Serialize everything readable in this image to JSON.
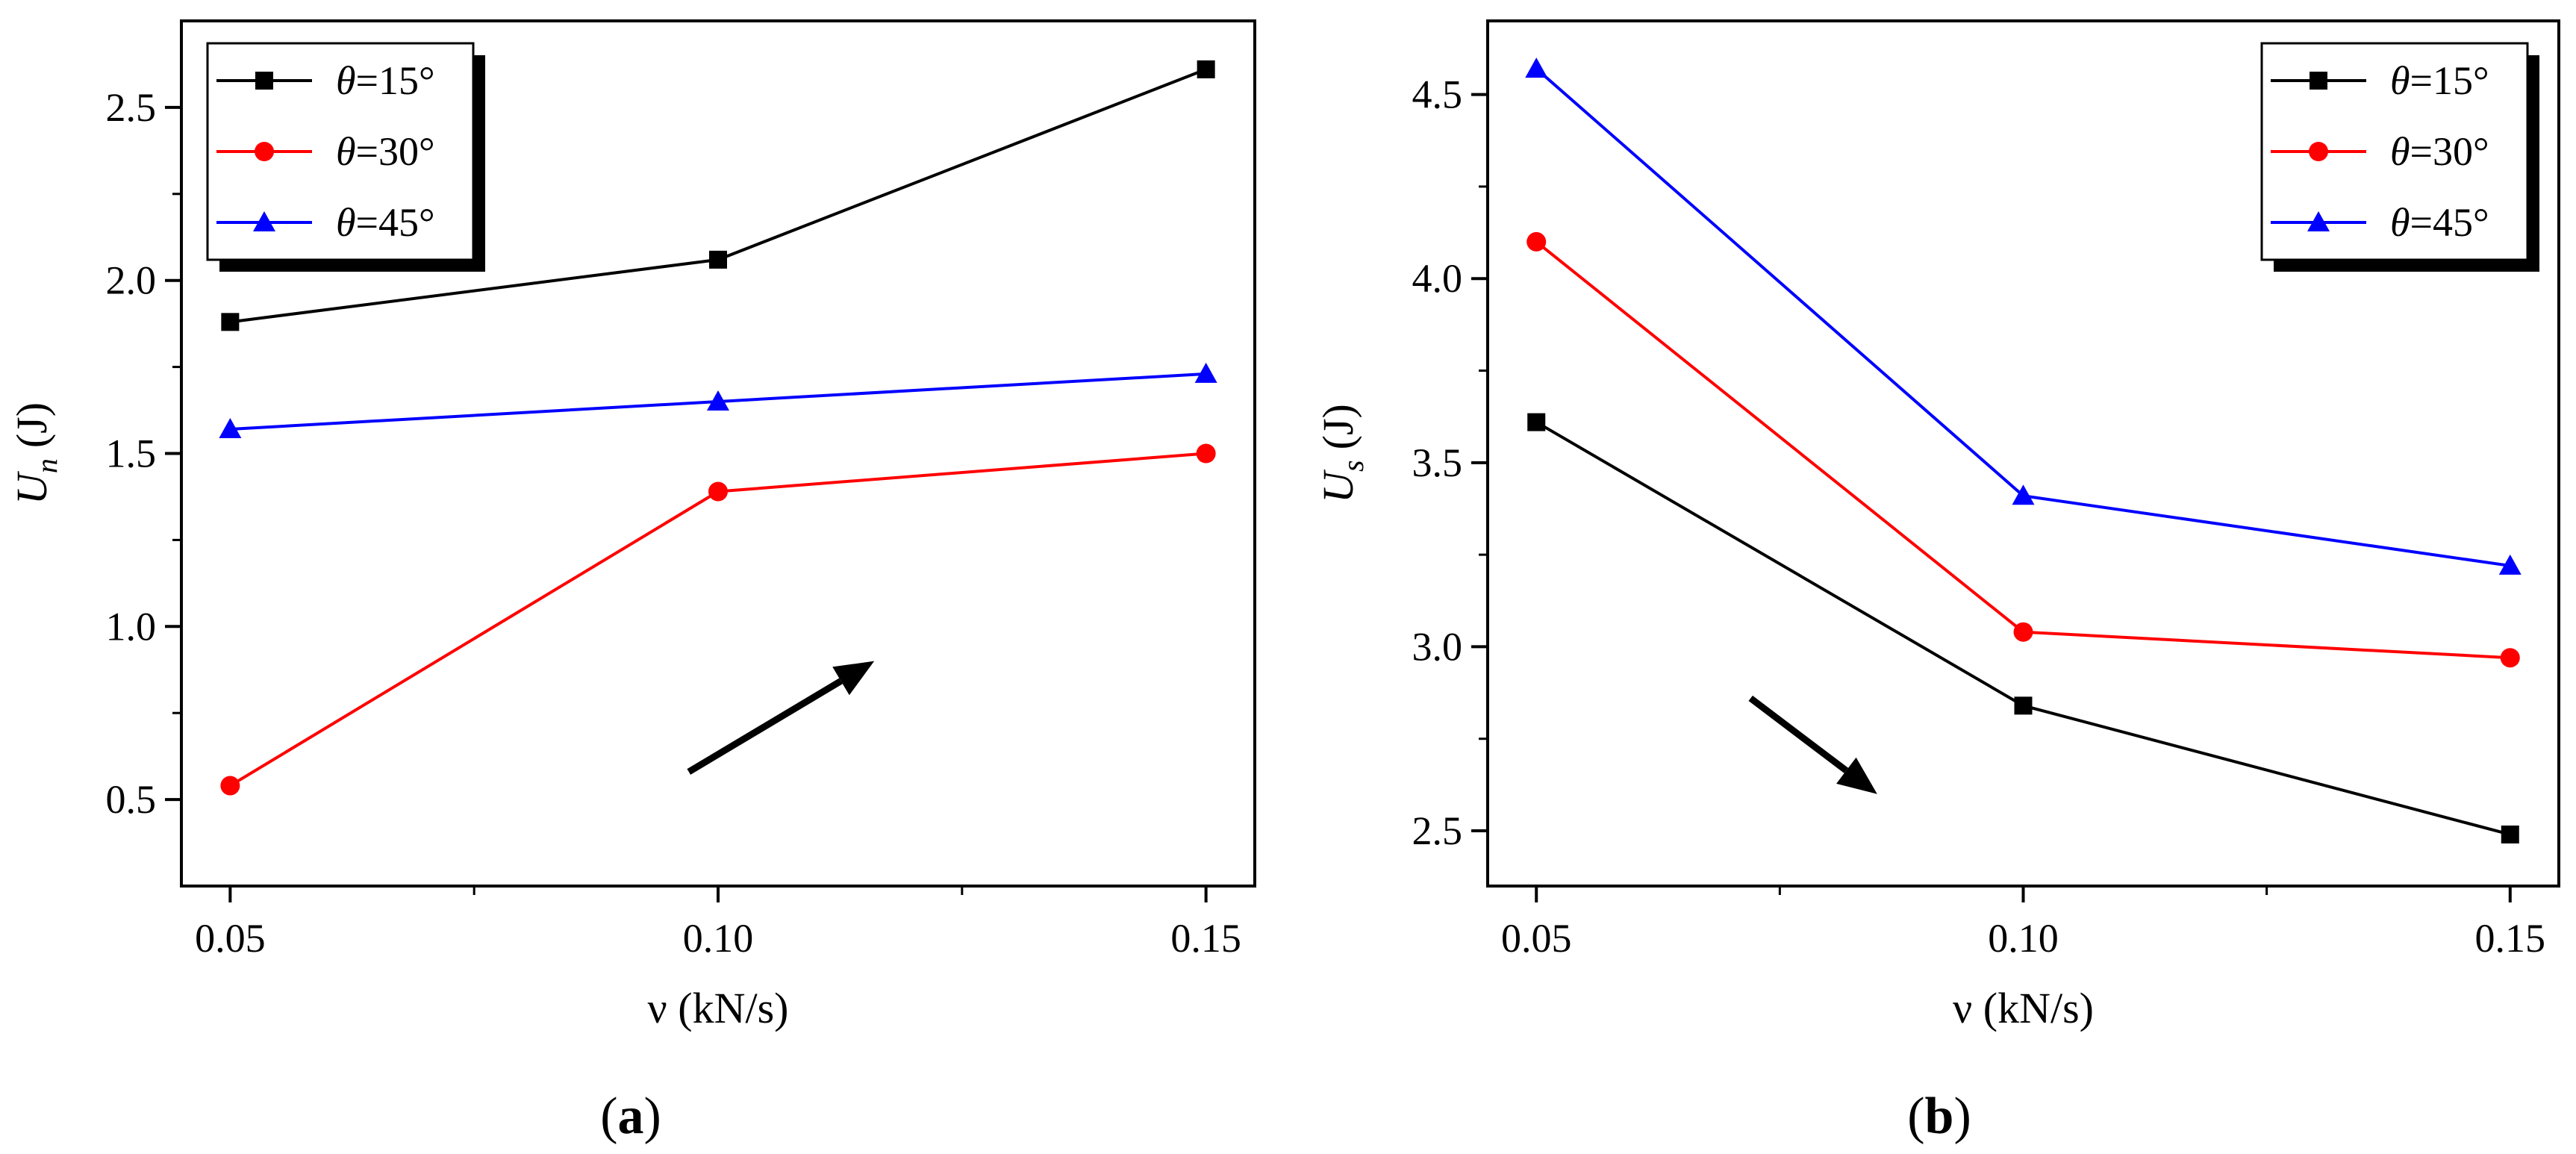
{
  "chart_data": [
    {
      "type": "line",
      "panel_label": "a",
      "ylabel_main": "U",
      "ylabel_sub": "n",
      "ylabel_unit": "(J)",
      "xlabel": "ν (kN/s)",
      "x": [
        0.05,
        0.1,
        0.15
      ],
      "xtick_labels": [
        "0.05",
        "0.10",
        "0.15"
      ],
      "xlim": [
        0.045,
        0.155
      ],
      "ylim": [
        0.25,
        2.75
      ],
      "yticks": [
        0.5,
        1.0,
        1.5,
        2.0,
        2.5
      ],
      "ytick_labels": [
        "0.5",
        "1.0",
        "1.5",
        "2.0",
        "2.5"
      ],
      "series": [
        {
          "name": "θ=15°",
          "label_theta": "θ",
          "label_rest": "=15°",
          "color": "#000000",
          "marker": "square",
          "values": [
            1.88,
            2.06,
            2.61
          ]
        },
        {
          "name": "θ=30°",
          "label_theta": "θ",
          "label_rest": "=30°",
          "color": "#ff0000",
          "marker": "circle",
          "values": [
            0.54,
            1.39,
            1.5
          ]
        },
        {
          "name": "θ=45°",
          "label_theta": "θ",
          "label_rest": "=45°",
          "color": "#0000ff",
          "marker": "triangle",
          "values": [
            1.57,
            1.65,
            1.73
          ]
        }
      ],
      "legend_position": "top-left",
      "arrow": {
        "direction": "up-right",
        "from": [
          0.097,
          0.58
        ],
        "to": [
          0.116,
          0.9
        ]
      }
    },
    {
      "type": "line",
      "panel_label": "b",
      "ylabel_main": "U",
      "ylabel_sub": "s",
      "ylabel_unit": "(J)",
      "xlabel": "ν (kN/s)",
      "x": [
        0.05,
        0.1,
        0.15
      ],
      "xtick_labels": [
        "0.05",
        "0.10",
        "0.15"
      ],
      "xlim": [
        0.045,
        0.155
      ],
      "ylim": [
        2.35,
        4.7
      ],
      "yticks": [
        2.5,
        3.0,
        3.5,
        4.0,
        4.5
      ],
      "ytick_labels": [
        "2.5",
        "3.0",
        "3.5",
        "4.0",
        "4.5"
      ],
      "series": [
        {
          "name": "θ=15°",
          "label_theta": "θ",
          "label_rest": "=15°",
          "color": "#000000",
          "marker": "square",
          "values": [
            3.61,
            2.84,
            2.49
          ]
        },
        {
          "name": "θ=30°",
          "label_theta": "θ",
          "label_rest": "=30°",
          "color": "#ff0000",
          "marker": "circle",
          "values": [
            4.1,
            3.04,
            2.97
          ]
        },
        {
          "name": "θ=45°",
          "label_theta": "θ",
          "label_rest": "=45°",
          "color": "#0000ff",
          "marker": "triangle",
          "values": [
            4.57,
            3.41,
            3.22
          ]
        }
      ],
      "legend_position": "top-right",
      "arrow": {
        "direction": "down-right",
        "from": [
          0.072,
          2.86
        ],
        "to": [
          0.085,
          2.6
        ]
      }
    }
  ]
}
